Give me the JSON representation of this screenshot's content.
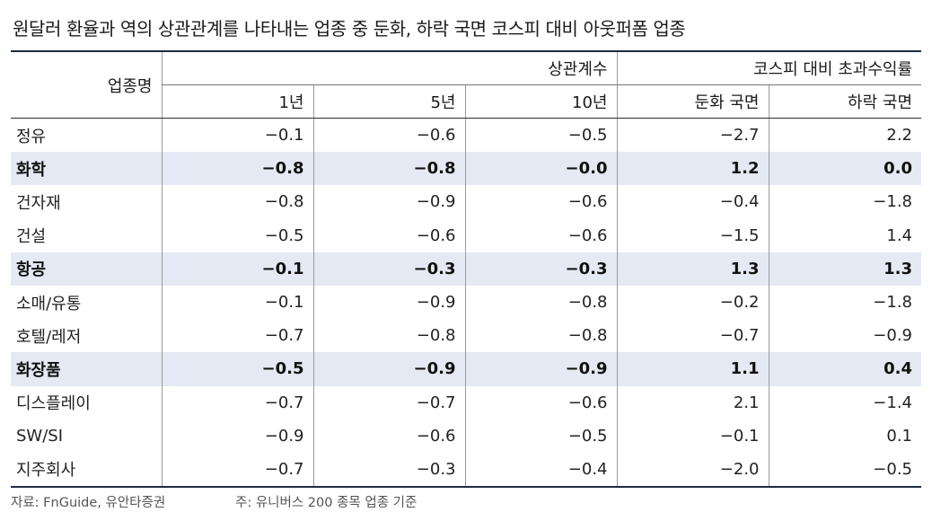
{
  "title": "원달러 환율과 역의 상관관계를 나타내는 업종 중 둔화, 하락 국면 코스피 대비 아웃퍼폼 업종",
  "table": {
    "header": {
      "industry": "업종명",
      "group_correlation": "상관계수",
      "group_excess": "코스피 대비 초과수익률",
      "columns": [
        "1년",
        "5년",
        "10년",
        "둔화 국면",
        "하락 국면"
      ]
    },
    "rows": [
      {
        "name": "정유",
        "highlight": false,
        "values": [
          "−0.1",
          "−0.6",
          "−0.5",
          "−2.7",
          "2.2"
        ]
      },
      {
        "name": "화학",
        "highlight": true,
        "values": [
          "−0.8",
          "−0.8",
          "−0.0",
          "1.2",
          "0.0"
        ]
      },
      {
        "name": "건자재",
        "highlight": false,
        "values": [
          "−0.8",
          "−0.9",
          "−0.6",
          "−0.4",
          "−1.8"
        ]
      },
      {
        "name": "건설",
        "highlight": false,
        "values": [
          "−0.5",
          "−0.6",
          "−0.6",
          "−1.5",
          "1.4"
        ]
      },
      {
        "name": "항공",
        "highlight": true,
        "values": [
          "−0.1",
          "−0.3",
          "−0.3",
          "1.3",
          "1.3"
        ]
      },
      {
        "name": "소매/유통",
        "highlight": false,
        "values": [
          "−0.1",
          "−0.9",
          "−0.8",
          "−0.2",
          "−1.8"
        ]
      },
      {
        "name": "호텔/레저",
        "highlight": false,
        "values": [
          "−0.7",
          "−0.8",
          "−0.8",
          "−0.7",
          "−0.9"
        ]
      },
      {
        "name": "화장품",
        "highlight": true,
        "values": [
          "−0.5",
          "−0.9",
          "−0.9",
          "1.1",
          "0.4"
        ]
      },
      {
        "name": "디스플레이",
        "highlight": false,
        "values": [
          "−0.7",
          "−0.7",
          "−0.6",
          "2.1",
          "−1.4"
        ]
      },
      {
        "name": "SW/SI",
        "highlight": false,
        "values": [
          "−0.9",
          "−0.6",
          "−0.5",
          "−0.1",
          "0.1"
        ]
      },
      {
        "name": "지주회사",
        "highlight": false,
        "values": [
          "−0.7",
          "−0.3",
          "−0.4",
          "−2.0",
          "−0.5"
        ]
      }
    ]
  },
  "footer": {
    "source": "자료: FnGuide, 유안타증권",
    "note": "주: 유니버스 200 종목 업종 기준"
  },
  "colors": {
    "highlight_row": "#e4e9f3",
    "rule": "#1f2a44"
  }
}
